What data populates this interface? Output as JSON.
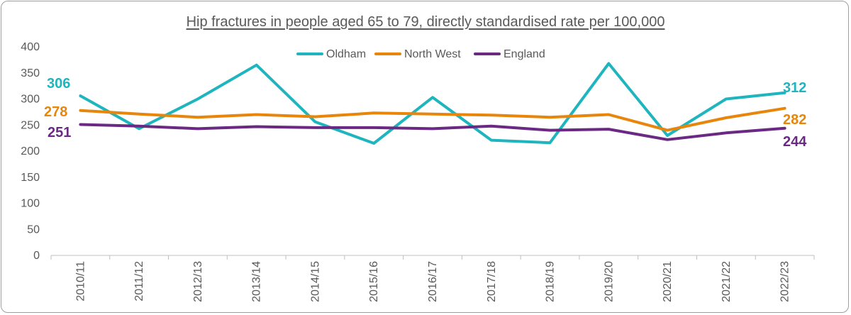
{
  "chart_data": {
    "type": "line",
    "title": "Hip fractures in people aged 65 to 79, directly standardised rate per 100,000",
    "categories": [
      "2010/11",
      "2011/12",
      "2012/13",
      "2013/14",
      "2014/15",
      "2015/16",
      "2016/17",
      "2017/18",
      "2018/19",
      "2019/20",
      "2020/21",
      "2021/22",
      "2022/23"
    ],
    "ylim": [
      0,
      400
    ],
    "yticks": [
      0,
      50,
      100,
      150,
      200,
      250,
      300,
      350,
      400
    ],
    "grid": false,
    "legend_position": "top",
    "series": [
      {
        "name": "Oldham",
        "color": "#1fb5bf",
        "values": [
          306,
          243,
          300,
          365,
          256,
          215,
          303,
          221,
          216,
          368,
          230,
          300,
          312
        ]
      },
      {
        "name": "North West",
        "color": "#e8860c",
        "values": [
          278,
          271,
          265,
          270,
          266,
          273,
          271,
          269,
          265,
          270,
          240,
          264,
          282
        ]
      },
      {
        "name": "England",
        "color": "#6a2a83",
        "values": [
          251,
          248,
          243,
          247,
          245,
          245,
          243,
          248,
          240,
          242,
          222,
          235,
          244
        ]
      }
    ],
    "end_labels": [
      {
        "series": "Oldham",
        "start": "306",
        "end": "312"
      },
      {
        "series": "North West",
        "start": "278",
        "end": "282"
      },
      {
        "series": "England",
        "start": "251",
        "end": "244"
      }
    ]
  }
}
